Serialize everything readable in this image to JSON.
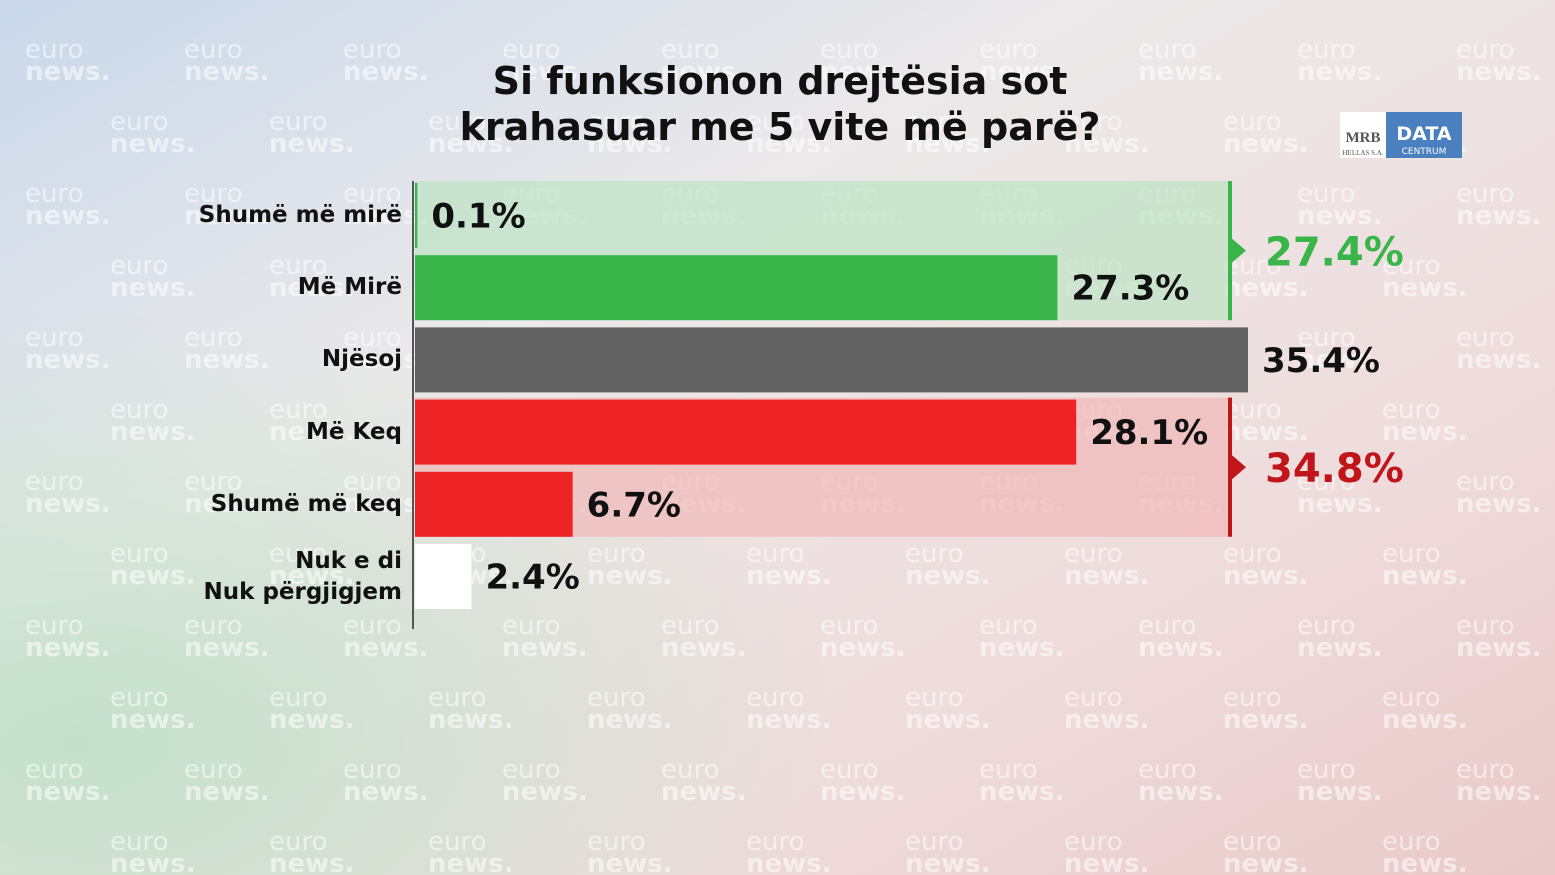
{
  "chart_data": {
    "type": "bar",
    "orientation": "horizontal",
    "title": "Si funksionon drejtësia sot\nkrahasuar me 5 vite më parë?",
    "categories": [
      "Shumë më mirë",
      "Më Mirë",
      "Njësoj",
      "Më Keq",
      "Shumë më keq",
      "Nuk e di\nNuk përgjigjem"
    ],
    "values": [
      0.1,
      27.3,
      35.4,
      28.1,
      6.7,
      2.4
    ],
    "value_labels": [
      "0.1%",
      "27.3%",
      "35.4%",
      "28.1%",
      "6.7%",
      "2.4%"
    ],
    "colors": [
      "#3ab54a",
      "#3ab54a",
      "#626262",
      "#ee2326",
      "#ee2326",
      "#ffffff"
    ],
    "xlim": [
      0,
      35.4
    ],
    "annotations": [
      {
        "value": 27.4,
        "label": "27.4%",
        "color": "#3ab54a"
      },
      {
        "value": 34.8,
        "label": "34.8%",
        "color": "#c0151b"
      }
    ]
  },
  "watermark": [
    "euro",
    "news."
  ],
  "logo": [
    "MRB",
    "HELLAS S.A.",
    "DATA",
    "CENTRUM"
  ]
}
